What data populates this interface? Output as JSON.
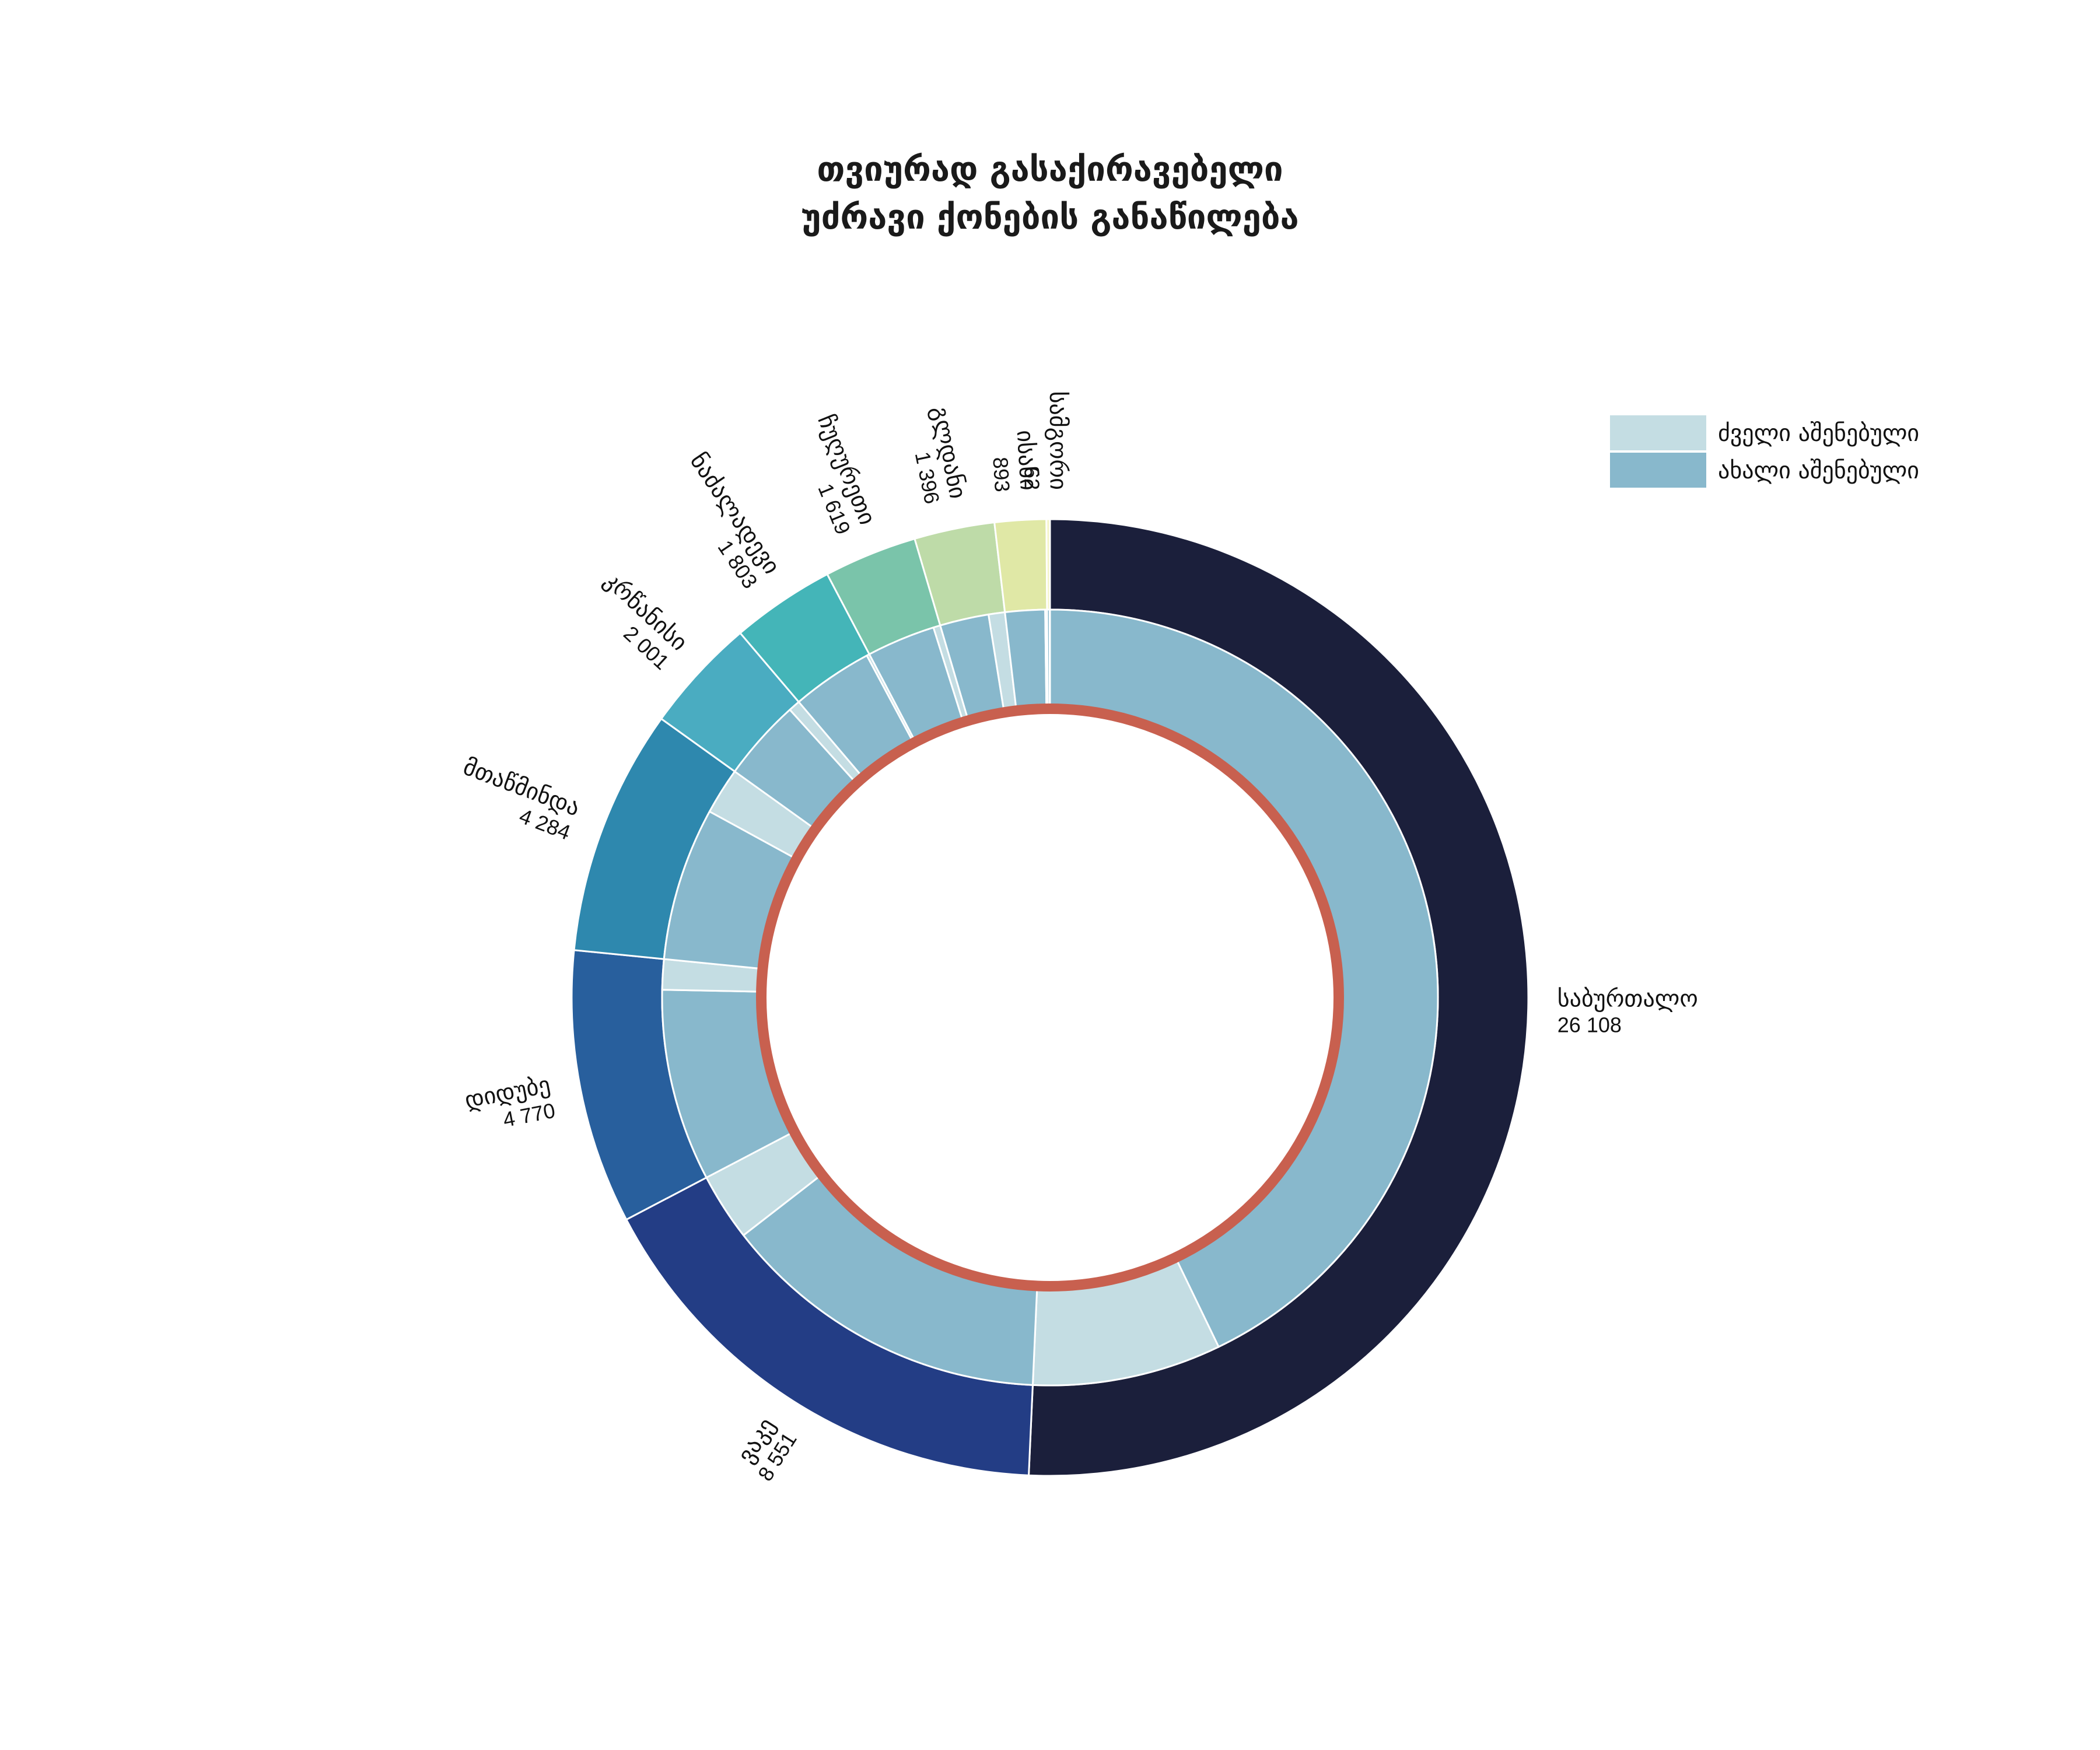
{
  "chart_data": {
    "type": "pie",
    "title": [
      "თვიურად გასაქირავებელი",
      "უძრავი ქონების განაწილება"
    ],
    "outer_ring": {
      "categories": [
        "საბურთალო",
        "ვაკე",
        "დიდუბე",
        "მთაწმინდა",
        "კრწანისი",
        "ნაძალადევი",
        "ჩუღურეთი",
        "გლდანი",
        "ისანი",
        "სამგორი"
      ],
      "value_labels": [
        "26 108",
        "8 551",
        "4 770",
        "4 284",
        "2 001",
        "1 803",
        "1 619",
        "1 396",
        "893",
        "62"
      ],
      "values": [
        26108,
        8551,
        4770,
        4284,
        2001,
        1803,
        1619,
        1396,
        893,
        62
      ],
      "colors": [
        "#1b1f3b",
        "#233d85",
        "#285f9d",
        "#2e88ae",
        "#4aacc1",
        "#44b5b8",
        "#7ac4aa",
        "#bedba8",
        "#e0e8a6",
        "#f5f5c8"
      ]
    },
    "inner_ring": {
      "series": [
        {
          "name": "ძველი აშენებული",
          "values": [
            4050,
            1450,
            650,
            1000,
            250,
            60,
            150,
            350,
            40,
            5
          ]
        },
        {
          "name": "ახალი აშენებული",
          "values": [
            22058,
            7101,
            4120,
            3284,
            1751,
            1743,
            1469,
            1046,
            853,
            57
          ]
        }
      ],
      "colors": {
        "old": "#c4dde3",
        "new": "#88b8cc"
      }
    },
    "center_ring_color": "#c8604f",
    "start": "top, clockwise",
    "legend_position": "top-right"
  }
}
